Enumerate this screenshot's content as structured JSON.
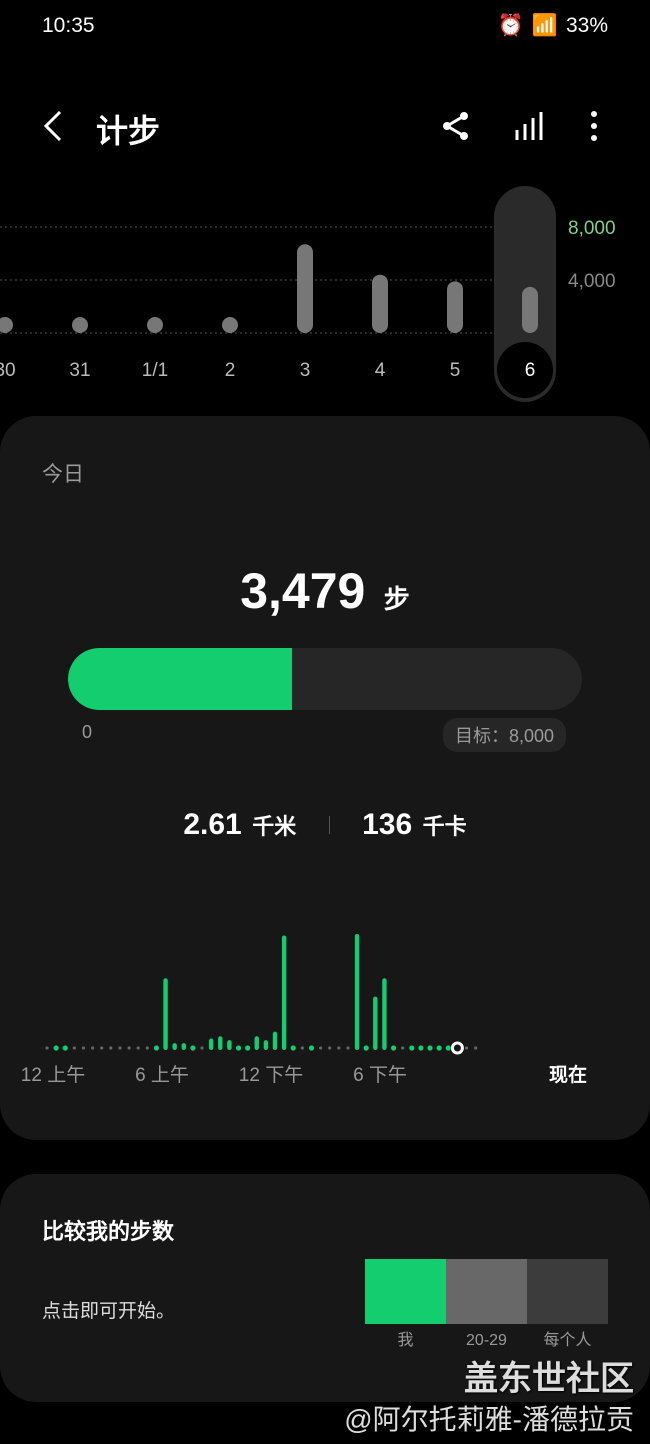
{
  "status": {
    "time": "10:35",
    "battery": "33%",
    "network": "4G"
  },
  "header": {
    "title": "计步",
    "back_icon": "chevron-left-icon",
    "share_icon": "share-icon",
    "stats_icon": "bar-chart-icon",
    "more_icon": "more-vertical-icon"
  },
  "weekly": {
    "type": "bar",
    "categories": [
      "30",
      "31",
      "1/1",
      "2",
      "3",
      "4",
      "5",
      "6"
    ],
    "values": [
      0,
      0,
      0,
      0,
      6700,
      4400,
      3900,
      3479
    ],
    "ylim": [
      0,
      8000
    ],
    "ticks": [
      "8,000",
      "4,000"
    ],
    "goal_color": "#7fd18f",
    "selected": "6"
  },
  "today": {
    "label": "今日",
    "steps": "3,479",
    "steps_unit": "步",
    "progress_pct": 43.5,
    "progress_min": "0",
    "goal": "目标：8,000",
    "distance": "2.61",
    "distance_unit": "千米",
    "calories": "136",
    "calories_unit": "千卡",
    "accent": "#13cd6e"
  },
  "chart_data": {
    "type": "bar",
    "x_ticks": [
      "12 上午",
      "6 上午",
      "12 下午",
      "6 下午",
      "现在"
    ],
    "slots": 48,
    "now_slot": 45,
    "values": [
      0,
      5,
      5,
      0,
      0,
      0,
      0,
      0,
      0,
      0,
      0,
      0,
      5,
      470,
      45,
      45,
      5,
      0,
      75,
      90,
      65,
      5,
      5,
      90,
      65,
      120,
      750,
      5,
      0,
      5,
      0,
      0,
      0,
      0,
      760,
      5,
      350,
      470,
      5,
      0,
      5,
      5,
      5,
      5,
      5,
      0,
      0,
      0
    ]
  },
  "compare": {
    "title": "比较我的步数",
    "hint": "点击即可开始。",
    "labels": [
      "我",
      "20-29",
      "每个人"
    ],
    "colors": [
      "#13cd6e",
      "#686868",
      "#3c3c3c"
    ]
  },
  "watermark": {
    "line1": "盖东世社区",
    "line2": "@阿尔托莉雅-潘德拉贡"
  }
}
